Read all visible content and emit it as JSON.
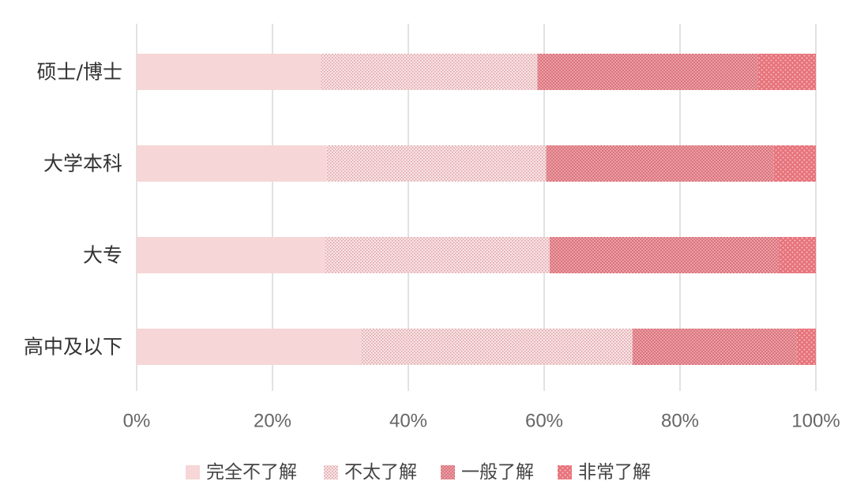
{
  "chart_data": {
    "type": "bar",
    "orientation": "horizontal",
    "stacked": true,
    "percent_stacked": true,
    "categories": [
      "硕士/博士",
      "大学本科",
      "大专",
      "高中及以下"
    ],
    "series": [
      {
        "name": "完全不了解",
        "values": [
          27,
          28,
          27.8,
          33
        ],
        "color": "#f6d6d6",
        "pattern": "solid"
      },
      {
        "name": "不太了解",
        "values": [
          32,
          32.3,
          33,
          40
        ],
        "color": "#f3cfd1",
        "pattern": "fine-dots"
      },
      {
        "name": "一般了解",
        "values": [
          32.5,
          33.5,
          33.8,
          24.2
        ],
        "color": "#e58e95",
        "pattern": "dense-dots"
      },
      {
        "name": "非常了解",
        "values": [
          8.5,
          6.2,
          5.4,
          2.8
        ],
        "color": "#e76b73",
        "pattern": "cross-dots"
      }
    ],
    "x_ticks": [
      "0%",
      "20%",
      "40%",
      "60%",
      "80%",
      "100%"
    ],
    "xlim": [
      0,
      100
    ],
    "grid": "vertical",
    "legend": "bottom",
    "title": "",
    "xlabel": "",
    "ylabel": ""
  }
}
